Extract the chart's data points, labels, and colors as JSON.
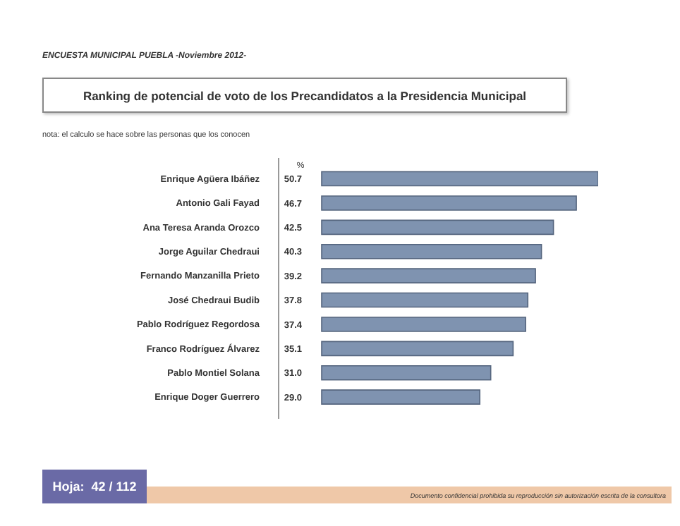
{
  "chart_data": {
    "type": "bar",
    "orientation": "horizontal",
    "title": "Ranking de potencial de voto de los Precandidatos a la Presidencia Municipal",
    "subtitle": "ENCUESTA MUNICIPAL PUEBLA -Noviembre 2012-",
    "xlabel": "%",
    "categories": [
      "Enrique Agüera Ibáñez",
      "Antonio Gali Fayad",
      "Ana Teresa Aranda Orozco",
      "Jorge Aguilar Chedraui",
      "Fernando Manzanilla Prieto",
      "José Chedraui Budib",
      "Pablo Rodríguez Regordosa",
      "Franco Rodríguez Álvarez",
      "Pablo Montiel Solana",
      "Enrique Doger Guerrero"
    ],
    "values": [
      50.7,
      46.7,
      42.5,
      40.3,
      39.2,
      37.8,
      37.4,
      35.1,
      31.0,
      29.0
    ],
    "value_labels": [
      "50.7",
      "46.7",
      "42.5",
      "40.3",
      "39.2",
      "37.8",
      "37.4",
      "35.1",
      "31.0",
      "29.0"
    ],
    "color": "#7f93b0",
    "grid": false,
    "legend": false,
    "annotations": [
      "nota: el calculo se hace sobre las personas que los conocen",
      "Hoja:  42 / 112",
      "Documento confidencial prohibida su reproducción sin autorización escrita de la consultora"
    ]
  }
}
